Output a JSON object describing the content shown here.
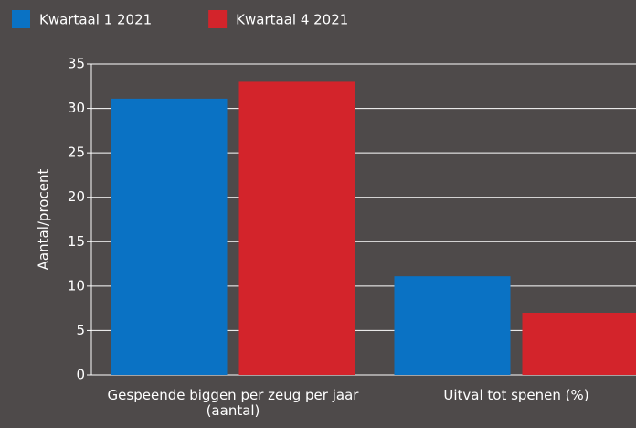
{
  "chart_data": {
    "type": "bar",
    "y_label": "Aantal/procent",
    "categories": [
      "Gespeende biggen per zeug per jaar (aantal)",
      "Uitval tot spenen (%)"
    ],
    "series": [
      {
        "name": "Kwartaal 1 2021",
        "color": "#0a72c4",
        "values": [
          31.1,
          11.1
        ]
      },
      {
        "name": "Kwartaal 4 2021",
        "color": "#d3242b",
        "values": [
          33,
          7
        ]
      }
    ],
    "ylim": [
      0,
      35
    ],
    "yticks": [
      0,
      5,
      10,
      15,
      20,
      25,
      30,
      35
    ],
    "grid": true,
    "legend": "top-left"
  }
}
